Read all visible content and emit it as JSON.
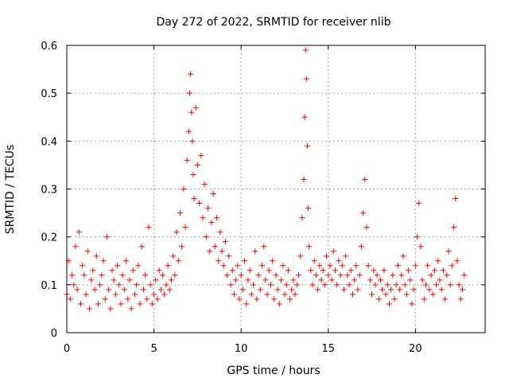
{
  "chart_data": {
    "type": "scatter",
    "title": "Day 272 of 2022, SRMTID for receiver nlib",
    "xlabel": "GPS time / hours",
    "ylabel": "SRMTID / TECUs",
    "xlim": [
      0,
      24
    ],
    "ylim": [
      0,
      0.6
    ],
    "x_ticks": [
      0,
      5,
      10,
      15,
      20
    ],
    "x_tick_labels": [
      "0",
      "5",
      "10",
      "15",
      "20"
    ],
    "y_ticks": [
      0,
      0.1,
      0.2,
      0.3,
      0.4,
      0.5,
      0.6
    ],
    "y_tick_labels": [
      "0",
      "0.1",
      "0.2",
      "0.3",
      "0.4",
      "0.5",
      "0.6"
    ],
    "grid": true,
    "marker": "plus",
    "color": "#ff0000",
    "series": [
      {
        "name": "SRMTID",
        "x": [
          0.0,
          0.1,
          0.2,
          0.3,
          0.4,
          0.5,
          0.6,
          0.7,
          0.8,
          0.9,
          1.0,
          1.1,
          1.2,
          1.3,
          1.4,
          1.5,
          1.6,
          1.7,
          1.8,
          1.9,
          2.0,
          2.1,
          2.2,
          2.3,
          2.4,
          2.5,
          2.6,
          2.7,
          2.8,
          2.9,
          3.0,
          3.1,
          3.2,
          3.3,
          3.4,
          3.5,
          3.6,
          3.7,
          3.8,
          3.9,
          4.0,
          4.1,
          4.2,
          4.3,
          4.4,
          4.5,
          4.6,
          4.7,
          4.8,
          4.9,
          5.0,
          5.1,
          5.2,
          5.3,
          5.4,
          5.5,
          5.6,
          5.7,
          5.8,
          5.9,
          6.0,
          6.1,
          6.2,
          6.3,
          6.4,
          6.5,
          6.6,
          6.7,
          6.8,
          6.9,
          7.0,
          7.05,
          7.1,
          7.15,
          7.2,
          7.25,
          7.3,
          7.4,
          7.5,
          7.6,
          7.7,
          7.8,
          7.9,
          8.0,
          8.1,
          8.2,
          8.3,
          8.4,
          8.5,
          8.6,
          8.7,
          8.8,
          8.9,
          9.0,
          9.1,
          9.2,
          9.3,
          9.4,
          9.5,
          9.6,
          9.7,
          9.8,
          9.9,
          10.0,
          10.1,
          10.2,
          10.3,
          10.4,
          10.5,
          10.6,
          10.7,
          10.8,
          10.9,
          11.0,
          11.1,
          11.2,
          11.3,
          11.4,
          11.5,
          11.6,
          11.7,
          11.8,
          11.9,
          12.0,
          12.1,
          12.2,
          12.3,
          12.4,
          12.5,
          12.6,
          12.7,
          12.8,
          12.9,
          13.0,
          13.1,
          13.2,
          13.3,
          13.4,
          13.5,
          13.6,
          13.65,
          13.7,
          13.75,
          13.8,
          13.85,
          13.9,
          14.0,
          14.1,
          14.2,
          14.3,
          14.4,
          14.5,
          14.6,
          14.7,
          14.8,
          14.9,
          15.0,
          15.1,
          15.2,
          15.3,
          15.4,
          15.5,
          15.6,
          15.7,
          15.8,
          15.9,
          16.0,
          16.1,
          16.2,
          16.3,
          16.4,
          16.5,
          16.6,
          16.7,
          16.8,
          16.9,
          17.0,
          17.1,
          17.2,
          17.3,
          17.4,
          17.5,
          17.6,
          17.7,
          17.8,
          17.9,
          18.0,
          18.1,
          18.2,
          18.3,
          18.4,
          18.5,
          18.6,
          18.7,
          18.8,
          18.9,
          19.0,
          19.1,
          19.2,
          19.3,
          19.4,
          19.5,
          19.6,
          19.7,
          19.8,
          19.9,
          20.0,
          20.1,
          20.2,
          20.3,
          20.4,
          20.5,
          20.6,
          20.7,
          20.8,
          20.9,
          21.0,
          21.1,
          21.2,
          21.3,
          21.4,
          21.5,
          21.6,
          21.7,
          21.8,
          21.9,
          22.0,
          22.1,
          22.2,
          22.3,
          22.4,
          22.5,
          22.6,
          22.7,
          22.8
        ],
        "y": [
          0.08,
          0.15,
          0.07,
          0.12,
          0.1,
          0.18,
          0.09,
          0.21,
          0.06,
          0.14,
          0.12,
          0.08,
          0.17,
          0.05,
          0.11,
          0.13,
          0.09,
          0.16,
          0.06,
          0.1,
          0.12,
          0.15,
          0.07,
          0.2,
          0.09,
          0.05,
          0.13,
          0.11,
          0.08,
          0.14,
          0.1,
          0.06,
          0.12,
          0.09,
          0.15,
          0.07,
          0.11,
          0.05,
          0.13,
          0.08,
          0.1,
          0.14,
          0.06,
          0.18,
          0.09,
          0.12,
          0.07,
          0.22,
          0.1,
          0.06,
          0.08,
          0.11,
          0.07,
          0.13,
          0.09,
          0.12,
          0.08,
          0.1,
          0.14,
          0.09,
          0.11,
          0.16,
          0.12,
          0.21,
          0.15,
          0.25,
          0.18,
          0.3,
          0.22,
          0.36,
          0.42,
          0.5,
          0.54,
          0.46,
          0.4,
          0.33,
          0.28,
          0.47,
          0.35,
          0.27,
          0.37,
          0.24,
          0.31,
          0.2,
          0.26,
          0.17,
          0.23,
          0.29,
          0.18,
          0.24,
          0.15,
          0.21,
          0.17,
          0.14,
          0.19,
          0.12,
          0.16,
          0.1,
          0.13,
          0.08,
          0.11,
          0.14,
          0.07,
          0.12,
          0.09,
          0.15,
          0.06,
          0.11,
          0.13,
          0.08,
          0.1,
          0.17,
          0.07,
          0.12,
          0.09,
          0.14,
          0.18,
          0.11,
          0.08,
          0.13,
          0.1,
          0.15,
          0.07,
          0.12,
          0.09,
          0.06,
          0.11,
          0.14,
          0.08,
          0.1,
          0.13,
          0.07,
          0.09,
          0.11,
          0.08,
          0.1,
          0.12,
          0.16,
          0.24,
          0.32,
          0.45,
          0.59,
          0.53,
          0.39,
          0.26,
          0.18,
          0.13,
          0.1,
          0.15,
          0.12,
          0.09,
          0.14,
          0.11,
          0.13,
          0.1,
          0.16,
          0.12,
          0.14,
          0.11,
          0.17,
          0.13,
          0.1,
          0.15,
          0.12,
          0.14,
          0.09,
          0.16,
          0.12,
          0.1,
          0.13,
          0.08,
          0.11,
          0.14,
          0.09,
          0.12,
          0.18,
          0.25,
          0.32,
          0.22,
          0.14,
          0.11,
          0.08,
          0.13,
          0.1,
          0.12,
          0.07,
          0.11,
          0.09,
          0.13,
          0.08,
          0.1,
          0.06,
          0.09,
          0.12,
          0.07,
          0.1,
          0.14,
          0.09,
          0.12,
          0.16,
          0.1,
          0.08,
          0.13,
          0.11,
          0.06,
          0.09,
          0.14,
          0.2,
          0.27,
          0.18,
          0.11,
          0.07,
          0.1,
          0.14,
          0.09,
          0.12,
          0.08,
          0.13,
          0.1,
          0.15,
          0.11,
          0.09,
          0.13,
          0.07,
          0.12,
          0.17,
          0.1,
          0.14,
          0.22,
          0.28,
          0.15,
          0.1,
          0.07,
          0.09,
          0.12
        ]
      }
    ]
  }
}
